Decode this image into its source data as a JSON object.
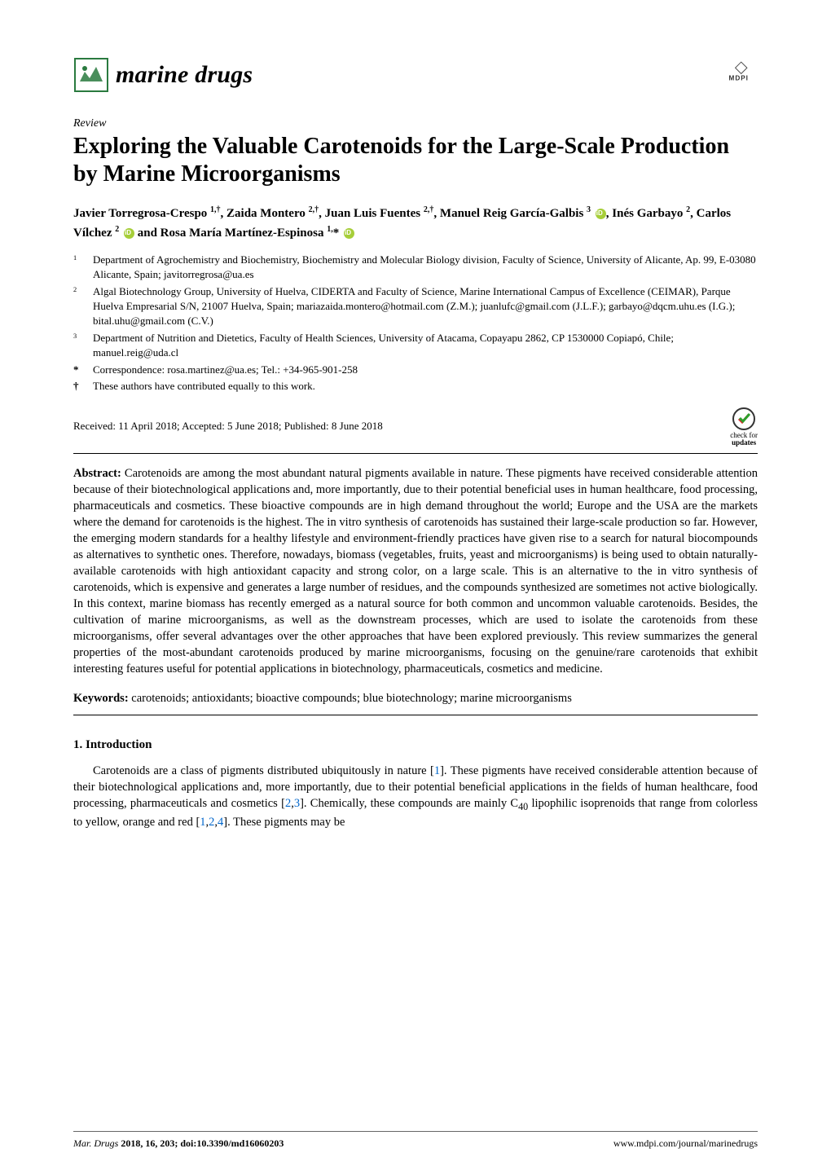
{
  "header": {
    "journal_name": "marine drugs",
    "publisher_logo_text": "MDPI",
    "logo_color": "#2a7a3f",
    "mdpi_logo_color": "#444444"
  },
  "article": {
    "type": "Review",
    "title": "Exploring the Valuable Carotenoids for the Large-Scale Production by Marine Microorganisms",
    "authors_html": "Javier Torregrosa-Crespo <sup>1,†</sup>, Zaida Montero <sup>2,†</sup>, Juan Luis Fuentes <sup>2,†</sup>, Manuel Reig García-Galbis <sup>3</sup> <span class='orcid'></span>, Inés Garbayo <sup>2</sup>, Carlos Vílchez <sup>2</sup> <span class='orcid'></span> and Rosa María Martínez-Espinosa <sup>1,</sup>* <span class='orcid'></span>"
  },
  "affiliations": [
    {
      "num": "1",
      "text": "Department of Agrochemistry and Biochemistry, Biochemistry and Molecular Biology division, Faculty of Science, University of Alicante, Ap. 99, E-03080 Alicante, Spain; javitorregrosa@ua.es"
    },
    {
      "num": "2",
      "text": "Algal Biotechnology Group, University of Huelva, CIDERTA and Faculty of Science, Marine International Campus of Excellence (CEIMAR), Parque Huelva Empresarial S/N, 21007 Huelva, Spain; mariazaida.montero@hotmail.com (Z.M.); juanlufc@gmail.com (J.L.F.); garbayo@dqcm.uhu.es (I.G.); bital.uhu@gmail.com (C.V.)"
    },
    {
      "num": "3",
      "text": "Department of Nutrition and Dietetics, Faculty of Health Sciences, University of Atacama, Copayapu 2862, CP 1530000 Copiapó, Chile; manuel.reig@uda.cl"
    }
  ],
  "correspondence": {
    "sym": "*",
    "text": "Correspondence: rosa.martinez@ua.es; Tel.: +34-965-901-258"
  },
  "equal": {
    "sym": "†",
    "text": "These authors have contributed equally to this work."
  },
  "dates": "Received: 11 April 2018; Accepted: 5 June 2018; Published: 8 June 2018",
  "check_updates": {
    "label_top": "check for",
    "label_bottom": "updates"
  },
  "abstract": {
    "label": "Abstract:",
    "text": " Carotenoids are among the most abundant natural pigments available in nature. These pigments have received considerable attention because of their biotechnological applications and, more importantly, due to their potential beneficial uses in human healthcare, food processing, pharmaceuticals and cosmetics. These bioactive compounds are in high demand throughout the world; Europe and the USA are the markets where the demand for carotenoids is the highest. The in vitro synthesis of carotenoids has sustained their large-scale production so far. However, the emerging modern standards for a healthy lifestyle and environment-friendly practices have given rise to a search for natural biocompounds as alternatives to synthetic ones. Therefore, nowadays, biomass (vegetables, fruits, yeast and microorganisms) is being used to obtain naturally-available carotenoids with high antioxidant capacity and strong color, on a large scale. This is an alternative to the in vitro synthesis of carotenoids, which is expensive and generates a large number of residues, and the compounds synthesized are sometimes not active biologically. In this context, marine biomass has recently emerged as a natural source for both common and uncommon valuable carotenoids. Besides, the cultivation of marine microorganisms, as well as the downstream processes, which are used to isolate the carotenoids from these microorganisms, offer several advantages over the other approaches that have been explored previously. This review summarizes the general properties of the most-abundant carotenoids produced by marine microorganisms, focusing on the genuine/rare carotenoids that exhibit interesting features useful for potential applications in biotechnology, pharmaceuticals, cosmetics and medicine."
  },
  "keywords": {
    "label": "Keywords:",
    "text": " carotenoids; antioxidants; bioactive compounds; blue biotechnology; marine microorganisms"
  },
  "section1": {
    "heading": "1. Introduction",
    "para1_pre": "Carotenoids are a class of pigments distributed ubiquitously in nature [",
    "ref1": "1",
    "para1_mid1": "]. These pigments have received considerable attention because of their biotechnological applications and, more importantly, due to their potential beneficial applications in the fields of human healthcare, food processing, pharmaceuticals and cosmetics [",
    "ref2": "2",
    "para1_mid2": ",",
    "ref3": "3",
    "para1_mid3": "]. Chemically, these compounds are mainly C",
    "sub40": "40",
    "para1_mid4": " lipophilic isoprenoids that range from colorless to yellow, orange and red [",
    "ref4": "1",
    "para1_mid5": ",",
    "ref5": "2",
    "para1_mid6": ",",
    "ref6": "4",
    "para1_end": "]. These pigments may be"
  },
  "footer": {
    "left_italic": "Mar. Drugs",
    "left_rest": " 2018, 16, 203; doi:10.3390/md16060203",
    "right": "www.mdpi.com/journal/marinedrugs"
  },
  "colors": {
    "text": "#000000",
    "link": "#0066cc",
    "orcid": "#a6ce39",
    "background": "#ffffff"
  }
}
